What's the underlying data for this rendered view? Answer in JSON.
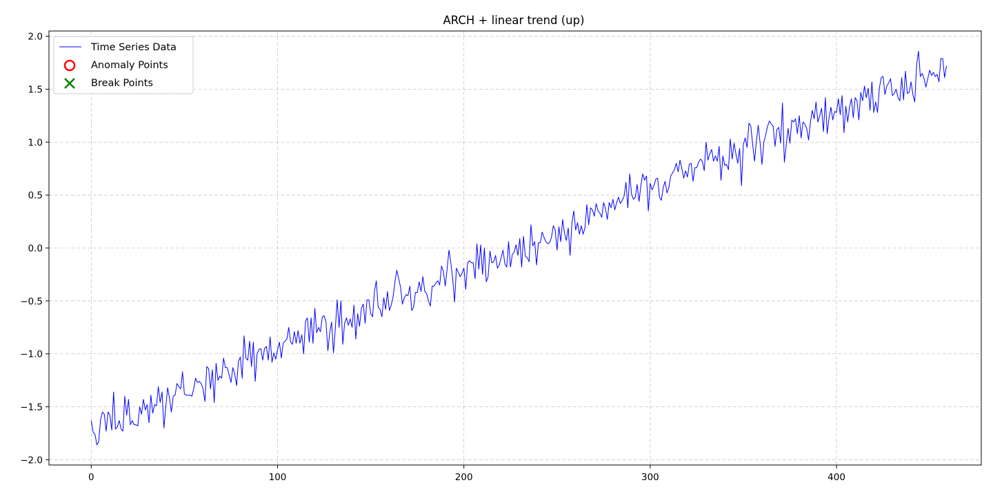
{
  "chart_data": {
    "type": "line",
    "title": "ARCH + linear trend (up)",
    "xlabel": "",
    "ylabel": "",
    "xlim": [
      -22.7,
      477.7
    ],
    "ylim": [
      -2.05,
      2.05
    ],
    "x_ticks": [
      0,
      100,
      200,
      300,
      400
    ],
    "y_ticks": [
      -2.0,
      -1.5,
      -1.0,
      -0.5,
      0.0,
      0.5,
      1.0,
      1.5,
      2.0
    ],
    "x_tick_labels": [
      "0",
      "100",
      "200",
      "300",
      "400"
    ],
    "y_tick_labels": [
      "−2.0",
      "−1.5",
      "−1.0",
      "−0.5",
      "0.0",
      "0.5",
      "1.0",
      "1.5",
      "2.0"
    ],
    "grid": true,
    "legend_position": "top-left",
    "legend": [
      {
        "label": "Time Series Data",
        "marker": "line",
        "color": "#0000ff"
      },
      {
        "label": "Anomaly Points",
        "marker": "circle",
        "color": "#ff0000"
      },
      {
        "label": "Break Points",
        "marker": "x",
        "color": "#008000"
      }
    ],
    "series": [
      {
        "name": "Time Series Data",
        "color": "#0000ff",
        "x_start": 0,
        "x_step": 1,
        "values": [
          -1.63,
          -1.74,
          -1.76,
          -1.86,
          -1.83,
          -1.62,
          -1.55,
          -1.57,
          -1.73,
          -1.55,
          -1.58,
          -1.72,
          -1.36,
          -1.71,
          -1.69,
          -1.63,
          -1.71,
          -1.73,
          -1.4,
          -1.58,
          -1.43,
          -1.67,
          -1.63,
          -1.67,
          -1.67,
          -1.68,
          -1.5,
          -1.57,
          -1.43,
          -1.53,
          -1.48,
          -1.65,
          -1.39,
          -1.56,
          -1.48,
          -1.49,
          -1.31,
          -1.46,
          -1.36,
          -1.7,
          -1.5,
          -1.32,
          -1.42,
          -1.55,
          -1.4,
          -1.39,
          -1.28,
          -1.31,
          -1.33,
          -1.17,
          -1.38,
          -1.39,
          -1.39,
          -1.39,
          -1.4,
          -1.33,
          -1.23,
          -1.27,
          -1.26,
          -1.28,
          -1.33,
          -1.45,
          -1.12,
          -1.14,
          -1.33,
          -1.15,
          -1.46,
          -1.09,
          -1.25,
          -1.21,
          -1.23,
          -1.04,
          -1.13,
          -1.13,
          -1.2,
          -1.27,
          -1.13,
          -1.19,
          -1.3,
          -1.07,
          -1.03,
          -1.23,
          -0.83,
          -1.04,
          -1.06,
          -0.88,
          -1.12,
          -0.89,
          -1.26,
          -1.0,
          -0.96,
          -0.95,
          -1.06,
          -0.95,
          -0.93,
          -1.06,
          -0.84,
          -1.08,
          -0.99,
          -1.05,
          -0.96,
          -0.89,
          -1.04,
          -0.9,
          -0.88,
          -0.86,
          -0.75,
          -0.89,
          -0.91,
          -0.79,
          -0.9,
          -0.78,
          -0.9,
          -0.82,
          -1.0,
          -0.69,
          -0.66,
          -0.89,
          -0.66,
          -0.9,
          -0.57,
          -0.8,
          -0.75,
          -0.79,
          -0.65,
          -0.64,
          -0.7,
          -0.97,
          -0.8,
          -0.7,
          -0.99,
          -0.76,
          -0.49,
          -0.75,
          -0.5,
          -0.91,
          -0.71,
          -0.66,
          -0.73,
          -0.67,
          -0.75,
          -0.54,
          -0.86,
          -0.62,
          -0.74,
          -0.57,
          -0.53,
          -0.71,
          -0.49,
          -0.49,
          -0.62,
          -0.65,
          -0.41,
          -0.31,
          -0.56,
          -0.58,
          -0.65,
          -0.47,
          -0.58,
          -0.41,
          -0.59,
          -0.54,
          -0.46,
          -0.32,
          -0.21,
          -0.29,
          -0.37,
          -0.53,
          -0.47,
          -0.44,
          -0.45,
          -0.36,
          -0.59,
          -0.56,
          -0.42,
          -0.42,
          -0.32,
          -0.41,
          -0.27,
          -0.41,
          -0.43,
          -0.5,
          -0.55,
          -0.36,
          -0.36,
          -0.33,
          -0.31,
          -0.35,
          -0.17,
          -0.22,
          -0.36,
          -0.2,
          -0.02,
          -0.14,
          -0.29,
          -0.51,
          -0.19,
          -0.23,
          -0.27,
          -0.24,
          -0.19,
          -0.39,
          -0.14,
          -0.12,
          -0.14,
          -0.14,
          -0.29,
          0.04,
          -0.2,
          0.03,
          -0.25,
          0.0,
          -0.32,
          -0.27,
          -0.03,
          -0.14,
          -0.13,
          -0.07,
          -0.19,
          -0.16,
          -0.09,
          -0.02,
          -0.15,
          -0.18,
          0.06,
          -0.18,
          -0.06,
          -0.04,
          0.03,
          -0.07,
          0.09,
          -0.18,
          0.11,
          -0.08,
          -0.09,
          -0.13,
          0.22,
          0.02,
          0.06,
          -0.16,
          0.05,
          0.05,
          0.15,
          0.1,
          0.06,
          0.04,
          0.05,
          0.1,
          0.21,
          0.17,
          -0.02,
          0.2,
          0.06,
          0.27,
          0.14,
          0.07,
          0.19,
          -0.07,
          0.24,
          0.35,
          0.17,
          0.24,
          0.13,
          0.21,
          0.13,
          0.19,
          0.41,
          0.22,
          0.38,
          0.36,
          0.3,
          0.42,
          0.35,
          0.33,
          0.29,
          0.43,
          0.37,
          0.27,
          0.43,
          0.38,
          0.46,
          0.36,
          0.43,
          0.48,
          0.42,
          0.45,
          0.49,
          0.62,
          0.38,
          0.7,
          0.51,
          0.46,
          0.48,
          0.6,
          0.44,
          0.59,
          0.7,
          0.64,
          0.68,
          0.35,
          0.61,
          0.55,
          0.59,
          0.65,
          0.66,
          0.48,
          0.45,
          0.57,
          0.63,
          0.52,
          0.57,
          0.68,
          0.71,
          0.74,
          0.8,
          0.72,
          0.83,
          0.75,
          0.66,
          0.73,
          0.67,
          0.79,
          0.8,
          0.63,
          0.76,
          0.76,
          0.81,
          0.84,
          0.82,
          0.73,
          1.0,
          0.83,
          0.89,
          0.93,
          0.82,
          0.87,
          0.82,
          0.96,
          0.64,
          0.87,
          0.78,
          0.79,
          0.74,
          1.03,
          0.84,
          0.99,
          0.89,
          0.8,
          0.94,
          0.59,
          0.98,
          1.04,
          0.95,
          1.18,
          1.15,
          0.98,
          0.82,
          1.01,
          1.16,
          0.99,
          0.79,
          1.0,
          1.07,
          1.15,
          1.2,
          1.17,
          1.15,
          0.96,
          1.12,
          1.14,
          0.99,
          1.37,
          0.81,
          0.97,
          1.13,
          0.99,
          1.21,
          1.19,
          1.22,
          1.08,
          1.25,
          1.04,
          1.19,
          1.17,
          1.13,
          1.02,
          1.19,
          1.3,
          1.22,
          1.38,
          1.19,
          1.25,
          1.32,
          1.1,
          1.42,
          1.08,
          1.23,
          1.33,
          1.21,
          1.29,
          1.28,
          1.41,
          1.26,
          1.44,
          1.09,
          1.34,
          1.19,
          1.33,
          1.41,
          1.23,
          1.42,
          1.39,
          1.21,
          1.47,
          1.39,
          1.53,
          1.42,
          1.51,
          1.3,
          1.57,
          1.28,
          1.38,
          1.28,
          1.51,
          1.61,
          1.62,
          1.45,
          1.53,
          1.56,
          1.6,
          1.44,
          1.46,
          1.5,
          1.42,
          1.39,
          1.61,
          1.4,
          1.67,
          1.46,
          1.47,
          1.57,
          1.45,
          1.38,
          1.73,
          1.86,
          1.62,
          1.65,
          1.6,
          1.52,
          1.6,
          1.68,
          1.63,
          1.66,
          1.62,
          1.64,
          1.57,
          1.79,
          1.79,
          1.61,
          1.72
        ]
      }
    ]
  }
}
